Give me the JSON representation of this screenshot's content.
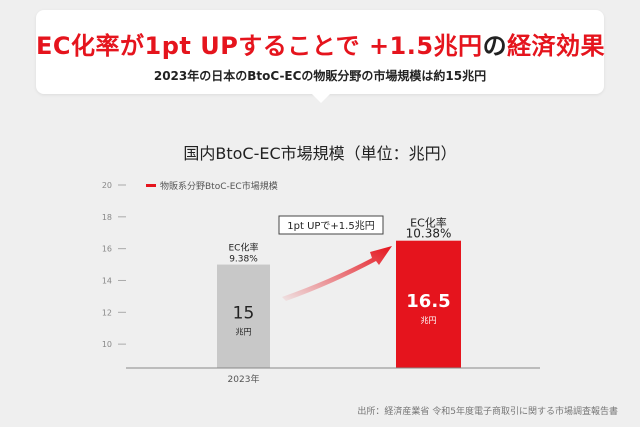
{
  "headline": {
    "part1": "EC化率が1pt UPすることで",
    "part2": "+1.5兆円",
    "part3": "の",
    "part4": "経済効果"
  },
  "subheadline": "2023年の日本のBtoC-ECの物販分野の市場規模は約15兆円",
  "source": "出所：経済産業省 令和5年度電子商取引に関する市場調査報告書",
  "colors": {
    "accent": "#e5141d",
    "bar_current": "#c8c8c8",
    "bar_projected": "#e5141d",
    "background": "#efefef"
  },
  "chart_data": {
    "type": "bar",
    "title": "国内BtoC-EC市場規模（単位：兆円）",
    "legend": {
      "label": "物販系分野BtoC-EC市場規模",
      "placement": "top-left"
    },
    "y_ticks": [
      "20",
      "18",
      "16",
      "14",
      "12",
      "10"
    ],
    "ylim": [
      8.5,
      20
    ],
    "bars": [
      {
        "category": "2023年",
        "value": 15,
        "value_label": "15",
        "unit": "兆円",
        "rate_title": "EC化率",
        "rate_value": "9.38%",
        "color": "#c8c8c8"
      },
      {
        "category": "",
        "value": 16.5,
        "value_label": "16.5",
        "unit": "兆円",
        "rate_title": "EC化率",
        "rate_value": "10.38%",
        "color": "#e5141d"
      }
    ],
    "annotation": {
      "text": "1pt UPで+1.5兆円",
      "icon": "arrow-up-right-icon"
    }
  }
}
